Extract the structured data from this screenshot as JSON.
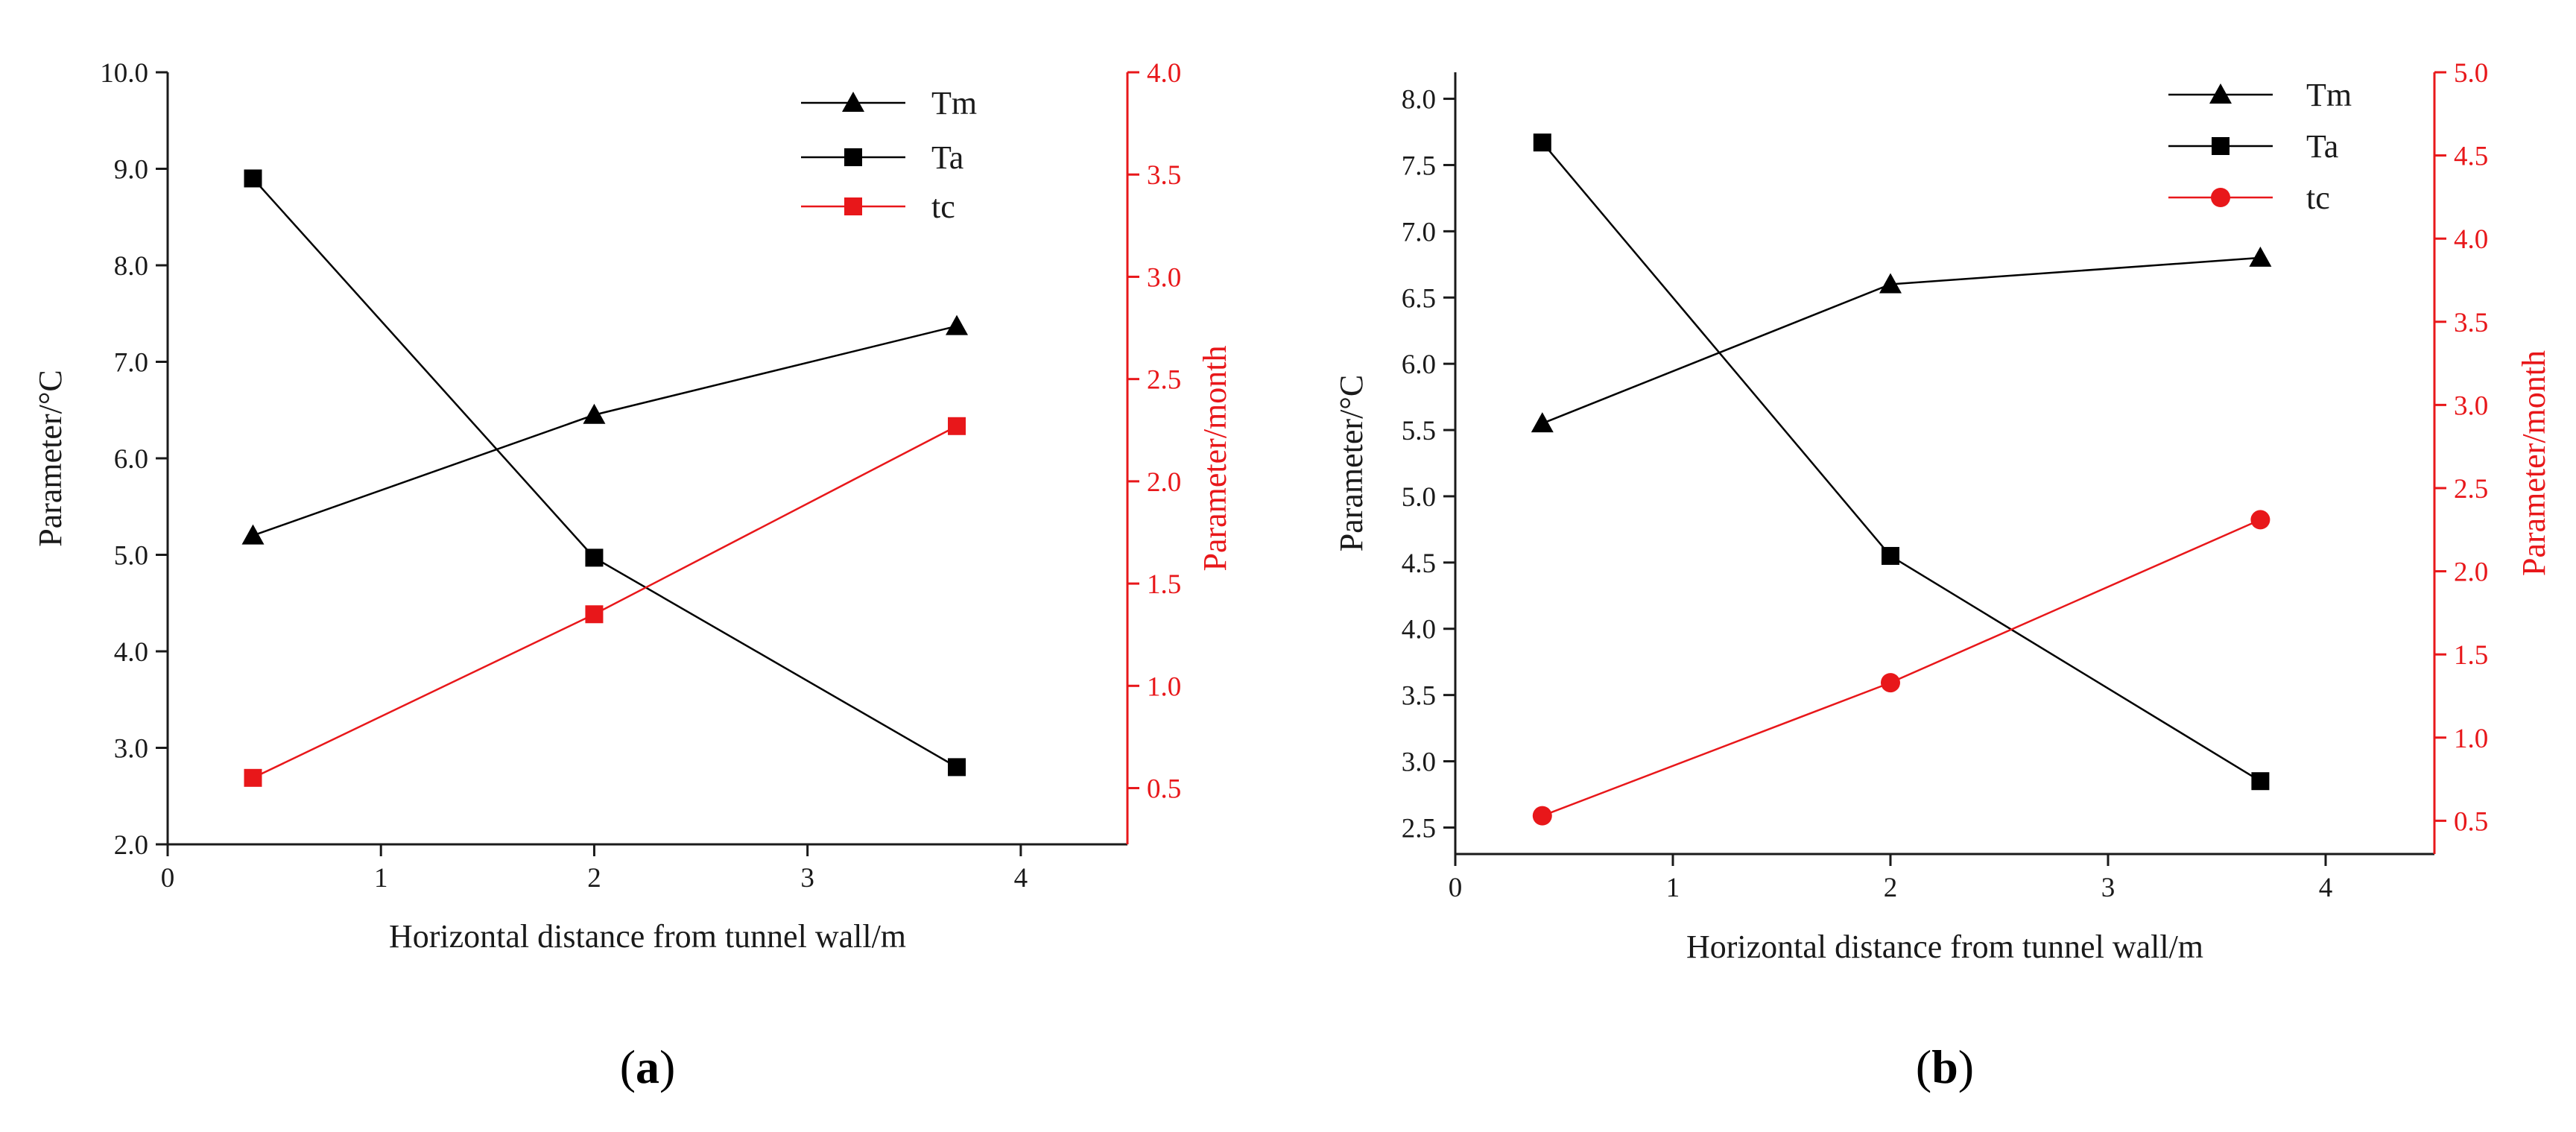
{
  "colors": {
    "black": "#000000",
    "red": "#e8171a",
    "tick": "#1a1a1a"
  },
  "chart_data": [
    {
      "type": "line",
      "panel_label": {
        "open": "(",
        "letter": "a",
        "close": ")"
      },
      "xlabel": "Horizontal distance from tunnel wall/m",
      "ylabel_left": "Parameter/°C",
      "ylabel_right": "Parameter/month",
      "xlim": [
        0,
        4.5
      ],
      "xticks": [
        0,
        1,
        2,
        3,
        4
      ],
      "ylim_left": [
        2.0,
        10.0
      ],
      "yticks_left": [
        2.0,
        3.0,
        4.0,
        5.0,
        6.0,
        7.0,
        8.0,
        9.0,
        10.0
      ],
      "ylim_right": [
        0.225,
        4.0
      ],
      "yticks_right": [
        0.5,
        1.0,
        1.5,
        2.0,
        2.5,
        3.0,
        3.5,
        4.0
      ],
      "legend_position": "top-right",
      "series": [
        {
          "name": "Tm",
          "axis": "left",
          "marker": "triangle",
          "color": "#000000",
          "x": [
            0.4,
            2.0,
            3.7
          ],
          "values": [
            5.2,
            6.45,
            7.37
          ]
        },
        {
          "name": "Ta",
          "axis": "left",
          "marker": "square",
          "color": "#000000",
          "x": [
            0.4,
            2.0,
            3.7
          ],
          "values": [
            8.9,
            4.97,
            2.8
          ]
        },
        {
          "name": "tc",
          "axis": "right",
          "marker": "square",
          "color": "#e8171a",
          "x": [
            0.4,
            2.0,
            3.7
          ],
          "values": [
            0.55,
            1.35,
            2.27
          ]
        }
      ]
    },
    {
      "type": "line",
      "panel_label": {
        "open": "(",
        "letter": "b",
        "close": ")"
      },
      "xlabel": "Horizontal distance from tunnel wall/m",
      "ylabel_left": "Parameter/°C",
      "ylabel_right": "Parameter/month",
      "xlim": [
        0,
        4.5
      ],
      "xticks": [
        0,
        1,
        2,
        3,
        4
      ],
      "ylim_left": [
        2.3,
        8.2
      ],
      "yticks_left": [
        2.5,
        3.0,
        3.5,
        4.0,
        4.5,
        5.0,
        5.5,
        6.0,
        6.5,
        7.0,
        7.5,
        8.0
      ],
      "ylim_right": [
        0.3,
        5.0
      ],
      "yticks_right": [
        0.5,
        1.0,
        1.5,
        2.0,
        2.5,
        3.0,
        3.5,
        4.0,
        4.5,
        5.0
      ],
      "legend_position": "top-right",
      "series": [
        {
          "name": "Tm",
          "axis": "left",
          "marker": "triangle",
          "color": "#000000",
          "x": [
            0.4,
            2.0,
            3.7
          ],
          "values": [
            5.55,
            6.6,
            6.8
          ]
        },
        {
          "name": "Ta",
          "axis": "left",
          "marker": "square",
          "color": "#000000",
          "x": [
            0.4,
            2.0,
            3.7
          ],
          "values": [
            7.67,
            4.55,
            2.85
          ]
        },
        {
          "name": "tc",
          "axis": "right",
          "marker": "circle",
          "color": "#e8171a",
          "x": [
            0.4,
            2.0,
            3.7
          ],
          "values": [
            0.53,
            1.33,
            2.31
          ]
        }
      ]
    }
  ]
}
